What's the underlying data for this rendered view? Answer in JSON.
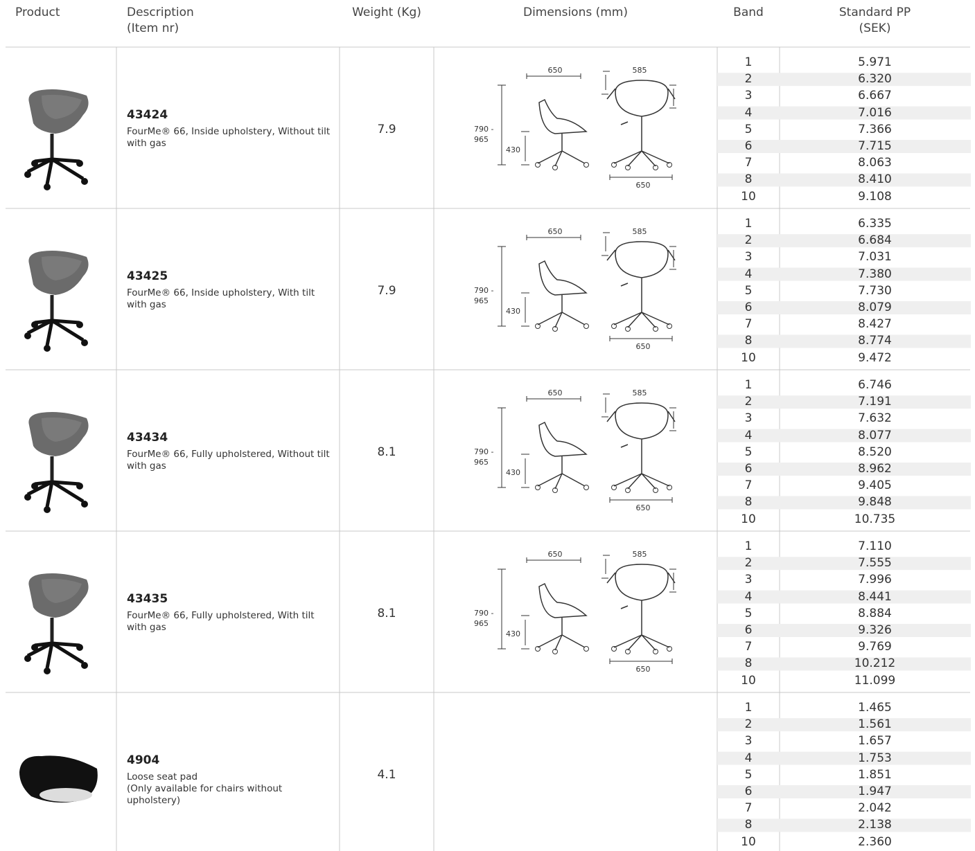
{
  "header": {
    "product": "Product",
    "description": [
      "Description",
      "(Item nr)"
    ],
    "weight": "Weight (Kg)",
    "dimensions": "Dimensions (mm)",
    "band": "Band",
    "price": [
      "Standard PP",
      "(SEK)"
    ]
  },
  "rows": [
    {
      "item": "43424",
      "description": [
        "FourMe® 66, Inside upholstery, Without tilt with gas"
      ],
      "weight": "7.9",
      "dimensions": {
        "side_depth": "650",
        "front_width": "585",
        "height_top": "790 -",
        "height_bottom": "965",
        "seat_height": "430",
        "base_width": "650"
      },
      "bands": [
        "1",
        "2",
        "3",
        "4",
        "5",
        "6",
        "7",
        "8",
        "10"
      ],
      "prices": [
        "5.971",
        "6.320",
        "6.667",
        "7.016",
        "7.366",
        "7.715",
        "8.063",
        "8.410",
        "9.108"
      ]
    },
    {
      "item": "43425",
      "description": [
        "FourMe® 66, Inside upholstery, With tilt with gas"
      ],
      "weight": "7.9",
      "dimensions": {
        "side_depth": "650",
        "front_width": "585",
        "height_top": "790 -",
        "height_bottom": "965",
        "seat_height": "430",
        "base_width": "650"
      },
      "bands": [
        "1",
        "2",
        "3",
        "4",
        "5",
        "6",
        "7",
        "8",
        "10"
      ],
      "prices": [
        "6.335",
        "6.684",
        "7.031",
        "7.380",
        "7.730",
        "8.079",
        "8.427",
        "8.774",
        "9.472"
      ]
    },
    {
      "item": "43434",
      "description": [
        "FourMe® 66, Fully upholstered, Without tilt with gas"
      ],
      "weight": "8.1",
      "dimensions": {
        "side_depth": "650",
        "front_width": "585",
        "height_top": "790 -",
        "height_bottom": "965",
        "seat_height": "430",
        "base_width": "650"
      },
      "bands": [
        "1",
        "2",
        "3",
        "4",
        "5",
        "6",
        "7",
        "8",
        "10"
      ],
      "prices": [
        "6.746",
        "7.191",
        "7.632",
        "8.077",
        "8.520",
        "8.962",
        "9.405",
        "9.848",
        "10.735"
      ]
    },
    {
      "item": "43435",
      "description": [
        "FourMe® 66, Fully upholstered, With tilt with gas"
      ],
      "weight": "8.1",
      "dimensions": {
        "side_depth": "650",
        "front_width": "585",
        "height_top": "790 -",
        "height_bottom": "965",
        "seat_height": "430",
        "base_width": "650"
      },
      "bands": [
        "1",
        "2",
        "3",
        "4",
        "5",
        "6",
        "7",
        "8",
        "10"
      ],
      "prices": [
        "7.110",
        "7.555",
        "7.996",
        "8.441",
        "8.884",
        "9.326",
        "9.769",
        "10.212",
        "11.099"
      ]
    },
    {
      "item": "4904",
      "description": [
        "Loose seat pad",
        "(Only available for chairs without upholstery)"
      ],
      "weight": "4.1",
      "bands": [
        "1",
        "2",
        "3",
        "4",
        "5",
        "6",
        "7",
        "8",
        "10"
      ],
      "prices": [
        "1.465",
        "1.561",
        "1.657",
        "1.753",
        "1.851",
        "1.947",
        "2.042",
        "2.138",
        "2.360"
      ]
    }
  ]
}
